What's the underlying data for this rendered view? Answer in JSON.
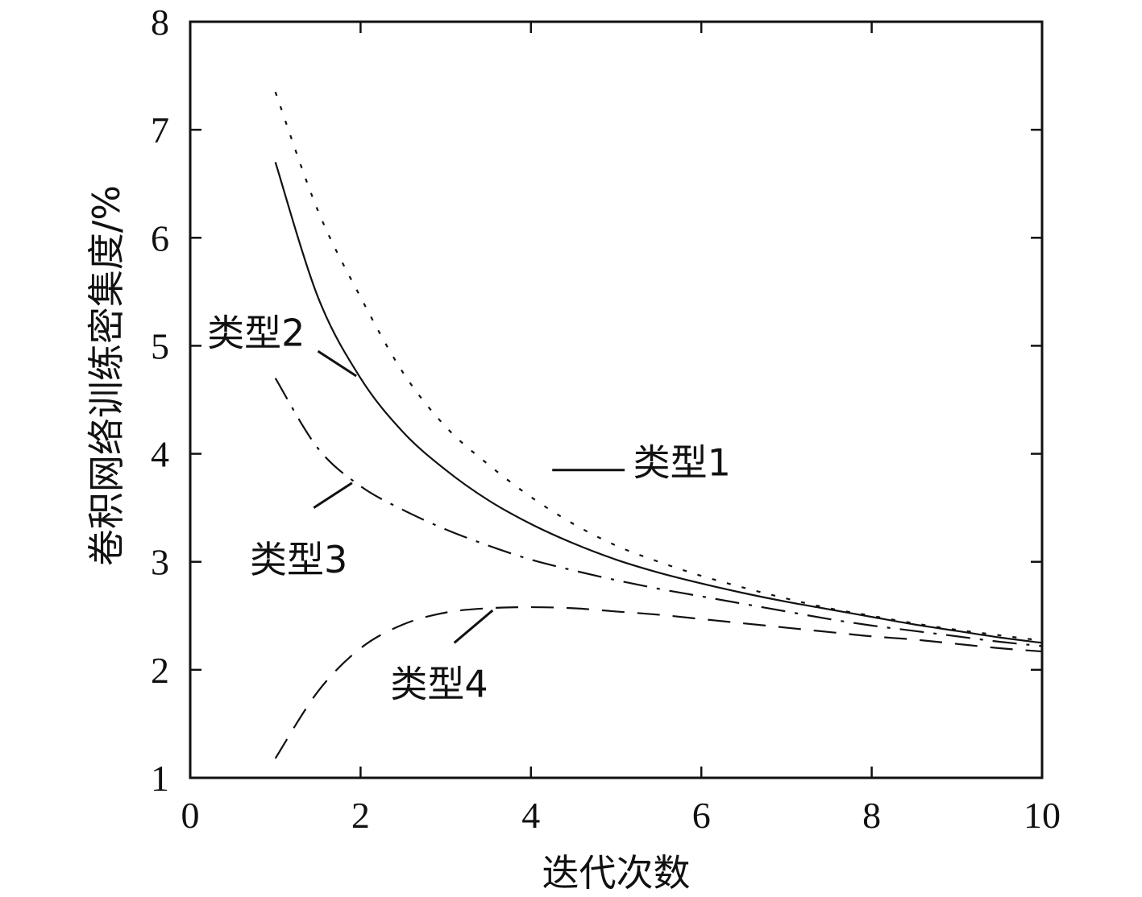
{
  "chart_data": {
    "type": "line",
    "title": "",
    "xlabel": "迭代次数",
    "ylabel": "卷积网络训练密集度/%",
    "xlim": [
      0,
      10
    ],
    "ylim": [
      1,
      8
    ],
    "x_ticks": [
      0,
      2,
      4,
      6,
      8,
      10
    ],
    "y_ticks": [
      1,
      2,
      3,
      4,
      5,
      6,
      7,
      8
    ],
    "grid": false,
    "legend": "none",
    "series": [
      {
        "name": "类型1",
        "style": "dotted",
        "x": [
          1,
          1.5,
          2,
          2.5,
          3,
          3.5,
          4,
          4.5,
          5,
          5.5,
          6,
          6.5,
          7,
          7.5,
          8,
          8.5,
          9,
          9.5,
          10
        ],
        "y": [
          7.35,
          6.25,
          5.45,
          4.75,
          4.25,
          3.9,
          3.6,
          3.35,
          3.15,
          3.0,
          2.87,
          2.76,
          2.66,
          2.57,
          2.5,
          2.43,
          2.37,
          2.32,
          2.27
        ]
      },
      {
        "name": "类型2",
        "style": "solid",
        "x": [
          1,
          1.5,
          2,
          2.5,
          3,
          3.5,
          4,
          4.5,
          5,
          5.5,
          6,
          6.5,
          7,
          7.5,
          8,
          8.5,
          9,
          9.5,
          10
        ],
        "y": [
          6.7,
          5.45,
          4.7,
          4.2,
          3.85,
          3.57,
          3.35,
          3.17,
          3.02,
          2.9,
          2.8,
          2.71,
          2.63,
          2.56,
          2.49,
          2.42,
          2.36,
          2.3,
          2.25
        ]
      },
      {
        "name": "类型3",
        "style": "dash-dot",
        "x": [
          1,
          1.5,
          2,
          2.5,
          3,
          3.5,
          4,
          4.5,
          5,
          5.5,
          6,
          6.5,
          7,
          7.5,
          8,
          8.5,
          9,
          9.5,
          10
        ],
        "y": [
          4.7,
          4.05,
          3.7,
          3.48,
          3.3,
          3.15,
          3.02,
          2.92,
          2.83,
          2.75,
          2.68,
          2.61,
          2.54,
          2.47,
          2.41,
          2.36,
          2.31,
          2.26,
          2.22
        ]
      },
      {
        "name": "类型4",
        "style": "dashed",
        "x": [
          1,
          1.5,
          2,
          2.5,
          3,
          3.5,
          4,
          4.5,
          5,
          5.5,
          6,
          6.5,
          7,
          7.5,
          8,
          8.5,
          9,
          9.5,
          10
        ],
        "y": [
          1.18,
          1.8,
          2.2,
          2.42,
          2.53,
          2.57,
          2.58,
          2.57,
          2.54,
          2.51,
          2.47,
          2.43,
          2.39,
          2.35,
          2.31,
          2.28,
          2.24,
          2.2,
          2.17
        ]
      }
    ],
    "annotations": [
      {
        "text": "类型1",
        "series": "类型1",
        "label_xy": [
          5.2,
          3.8
        ],
        "leader": [
          [
            4.25,
            3.85
          ],
          [
            5.1,
            3.85
          ]
        ]
      },
      {
        "text": "类型2",
        "series": "类型2",
        "label_xy": [
          0.2,
          5.0
        ],
        "leader": [
          [
            1.5,
            4.95
          ],
          [
            1.95,
            4.72
          ]
        ]
      },
      {
        "text": "类型3",
        "series": "类型3",
        "label_xy": [
          0.7,
          2.9
        ],
        "leader": [
          [
            1.45,
            3.5
          ],
          [
            1.9,
            3.73
          ]
        ]
      },
      {
        "text": "类型4",
        "series": "类型4",
        "label_xy": [
          2.35,
          1.75
        ],
        "leader": [
          [
            3.1,
            2.25
          ],
          [
            3.55,
            2.55
          ]
        ]
      }
    ]
  }
}
